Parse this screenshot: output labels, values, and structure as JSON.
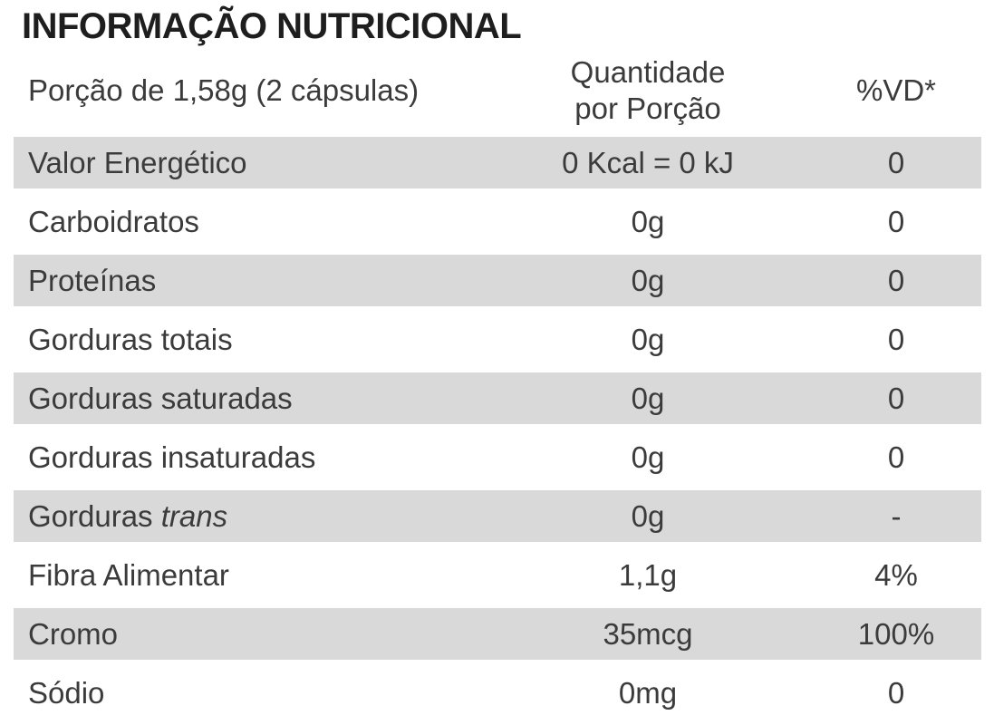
{
  "title": "INFORMAÇÃO NUTRICIONAL",
  "colors": {
    "stripe": "#d9d9d9",
    "text": "#3b3b3b",
    "title": "#1e1e1e",
    "background": "#ffffff"
  },
  "header": {
    "serving": "Porção de 1,58g (2 cápsulas)",
    "quantity_line1": "Quantidade",
    "quantity_line2": "por Porção",
    "dv": "%VD*"
  },
  "table": {
    "rows": [
      {
        "nutrient": "Valor Energético",
        "italic": "",
        "amount": "0 Kcal = 0 kJ",
        "dv": "0",
        "shaded": true
      },
      {
        "nutrient": "Carboidratos",
        "italic": "",
        "amount": "0g",
        "dv": "0",
        "shaded": false
      },
      {
        "nutrient": "Proteínas",
        "italic": "",
        "amount": "0g",
        "dv": "0",
        "shaded": true
      },
      {
        "nutrient": "Gorduras totais",
        "italic": "",
        "amount": "0g",
        "dv": "0",
        "shaded": false
      },
      {
        "nutrient": "Gorduras saturadas",
        "italic": "",
        "amount": "0g",
        "dv": "0",
        "shaded": true
      },
      {
        "nutrient": "Gorduras insaturadas",
        "italic": "",
        "amount": "0g",
        "dv": "0",
        "shaded": false
      },
      {
        "nutrient": "Gorduras ",
        "italic": "trans",
        "amount": "0g",
        "dv": "-",
        "shaded": true
      },
      {
        "nutrient": "Fibra Alimentar",
        "italic": "",
        "amount": "1,1g",
        "dv": "4%",
        "shaded": false
      },
      {
        "nutrient": "Cromo",
        "italic": "",
        "amount": "35mcg",
        "dv": "100%",
        "shaded": true
      },
      {
        "nutrient": "Sódio",
        "italic": "",
        "amount": "0mg",
        "dv": "0",
        "shaded": false
      }
    ]
  }
}
